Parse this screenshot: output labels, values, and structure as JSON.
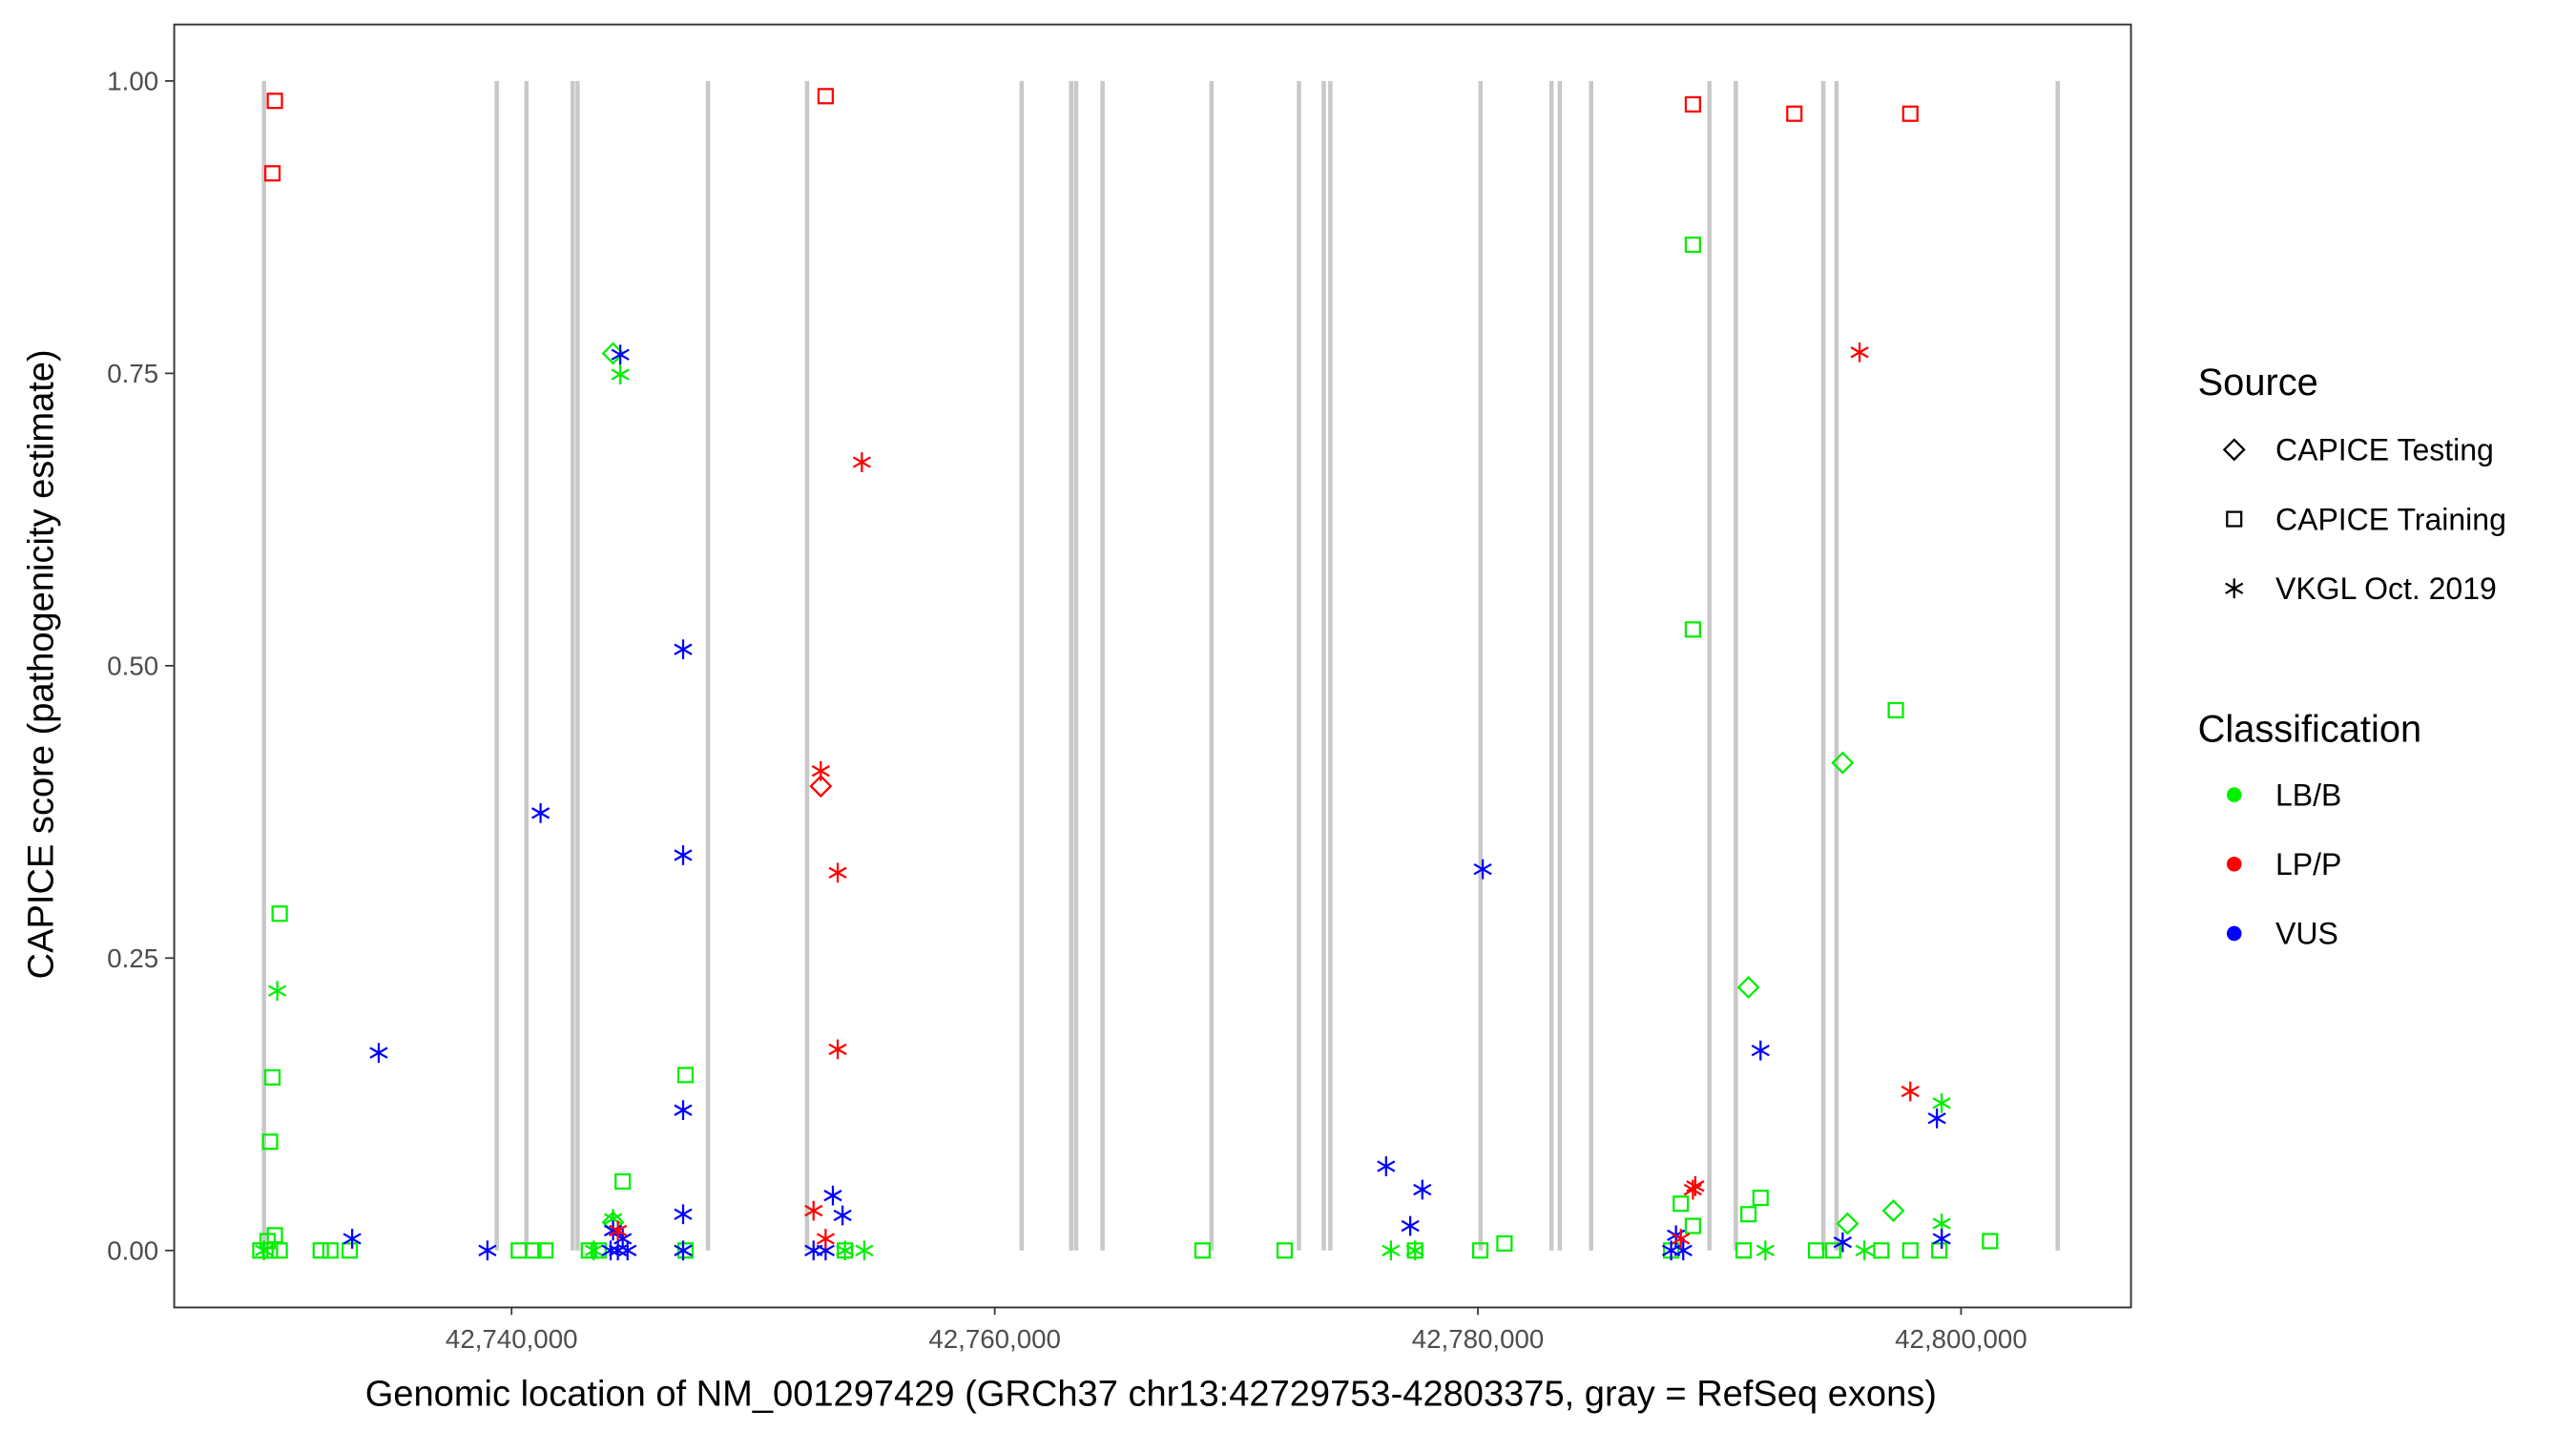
{
  "chart_data": {
    "type": "scatter",
    "xlabel": "Genomic location of NM_001297429 (GRCh37 chr13:42729753-42803375, gray = RefSeq exons)",
    "ylabel": "CAPICE score (pathogenicity estimate)",
    "xlim": [
      42726000,
      42807000
    ],
    "ylim": [
      -0.048,
      1.049
    ],
    "x_ticks": [
      42740000,
      42760000,
      42780000,
      42800000
    ],
    "x_tick_labels": [
      "42,740,000",
      "42,760,000",
      "42,780,000",
      "42,800,000"
    ],
    "y_ticks": [
      0,
      0.25,
      0.5,
      0.75,
      1
    ],
    "y_tick_labels": [
      "0.00",
      "0.25",
      "0.50",
      "0.75",
      "1.00"
    ],
    "grid": false,
    "exons_color": "#c8c8c8",
    "exons": [
      42729750,
      42739385,
      42740615,
      42742528,
      42742733,
      42748131,
      42752231,
      42761114,
      42763164,
      42763369,
      42764462,
      42768972,
      42772594,
      42773619,
      42773892,
      42780110,
      42783048,
      42783390,
      42784688,
      42789583,
      42790676,
      42794298,
      42794845,
      42804000
    ],
    "legend": {
      "placement": "right",
      "source": {
        "title": "Source",
        "entries": [
          {
            "key": "testing",
            "label": "CAPICE Testing",
            "shape": "diamond"
          },
          {
            "key": "training",
            "label": "CAPICE Training",
            "shape": "square"
          },
          {
            "key": "vkgl",
            "label": "VKGL Oct. 2019",
            "shape": "asterisk"
          }
        ]
      },
      "classification": {
        "title": "Classification",
        "entries": [
          {
            "key": "LB/B",
            "label": "LB/B",
            "color": "#00ee00"
          },
          {
            "key": "LP/P",
            "label": "LP/P",
            "color": "#ff0000"
          },
          {
            "key": "VUS",
            "label": "VUS",
            "color": "#0000ff"
          }
        ]
      }
    },
    "points": [
      [
        42730200,
        0.983,
        "training",
        "LP/P"
      ],
      [
        42730100,
        0.921,
        "training",
        "LP/P"
      ],
      [
        42753000,
        0.987,
        "training",
        "LP/P"
      ],
      [
        42788900,
        0.98,
        "training",
        "LP/P"
      ],
      [
        42793100,
        0.972,
        "training",
        "LP/P"
      ],
      [
        42797900,
        0.972,
        "training",
        "LP/P"
      ],
      [
        42788900,
        0.86,
        "training",
        "LB/B"
      ],
      [
        42788900,
        0.531,
        "training",
        "LB/B"
      ],
      [
        42797300,
        0.462,
        "training",
        "LB/B"
      ],
      [
        42730400,
        0.288,
        "training",
        "LB/B"
      ],
      [
        42730100,
        0.148,
        "training",
        "LB/B"
      ],
      [
        42730000,
        0.093,
        "training",
        "LB/B"
      ],
      [
        42747200,
        0.15,
        "training",
        "LB/B"
      ],
      [
        42744600,
        0.059,
        "training",
        "LB/B"
      ],
      [
        42791700,
        0.045,
        "training",
        "LB/B"
      ],
      [
        42788400,
        0.04,
        "training",
        "LB/B"
      ],
      [
        42791200,
        0.031,
        "training",
        "LB/B"
      ],
      [
        42788900,
        0.021,
        "training",
        "LB/B"
      ],
      [
        42801200,
        0.008,
        "training",
        "LB/B"
      ],
      [
        42781100,
        0.006,
        "training",
        "LB/B"
      ],
      [
        42730200,
        0.013,
        "training",
        "LB/B"
      ],
      [
        42729900,
        0.008,
        "training",
        "LB/B"
      ],
      [
        42729600,
        0,
        "training",
        "LB/B"
      ],
      [
        42730000,
        0,
        "training",
        "LB/B"
      ],
      [
        42730400,
        0,
        "training",
        "LB/B"
      ],
      [
        42732100,
        0,
        "training",
        "LB/B"
      ],
      [
        42732500,
        0,
        "training",
        "LB/B"
      ],
      [
        42733300,
        0,
        "training",
        "LB/B"
      ],
      [
        42740300,
        0,
        "training",
        "LB/B"
      ],
      [
        42740900,
        0,
        "training",
        "LB/B"
      ],
      [
        42741400,
        0,
        "training",
        "LB/B"
      ],
      [
        42743200,
        0,
        "training",
        "LB/B"
      ],
      [
        42743600,
        0,
        "training",
        "LB/B"
      ],
      [
        42747200,
        0,
        "training",
        "LB/B"
      ],
      [
        42753800,
        0,
        "training",
        "LB/B"
      ],
      [
        42768600,
        0,
        "training",
        "LB/B"
      ],
      [
        42772000,
        0,
        "training",
        "LB/B"
      ],
      [
        42777400,
        0,
        "training",
        "LB/B"
      ],
      [
        42780100,
        0,
        "training",
        "LB/B"
      ],
      [
        42788000,
        0,
        "training",
        "LB/B"
      ],
      [
        42791000,
        0,
        "training",
        "LB/B"
      ],
      [
        42794000,
        0,
        "training",
        "LB/B"
      ],
      [
        42794700,
        0,
        "training",
        "LB/B"
      ],
      [
        42796700,
        0,
        "training",
        "LB/B"
      ],
      [
        42797900,
        0,
        "training",
        "LB/B"
      ],
      [
        42799100,
        0,
        "training",
        "LB/B"
      ],
      [
        42744200,
        0.767,
        "testing",
        "LB/B"
      ],
      [
        42795100,
        0.417,
        "testing",
        "LB/B"
      ],
      [
        42791200,
        0.225,
        "testing",
        "LB/B"
      ],
      [
        42797200,
        0.034,
        "testing",
        "LB/B"
      ],
      [
        42795300,
        0.023,
        "testing",
        "LB/B"
      ],
      [
        42744200,
        0.024,
        "testing",
        "LB/B"
      ],
      [
        42752800,
        0.397,
        "testing",
        "LP/P"
      ],
      [
        42744500,
        0.749,
        "vkgl",
        "LB/B"
      ],
      [
        42730300,
        0.222,
        "vkgl",
        "LB/B"
      ],
      [
        42799200,
        0.126,
        "vkgl",
        "LB/B"
      ],
      [
        42799200,
        0.023,
        "vkgl",
        "LB/B"
      ],
      [
        42744200,
        0.027,
        "vkgl",
        "LB/B"
      ],
      [
        42776400,
        0,
        "vkgl",
        "LB/B"
      ],
      [
        42777400,
        0,
        "vkgl",
        "LB/B"
      ],
      [
        42791900,
        0,
        "vkgl",
        "LB/B"
      ],
      [
        42796000,
        0,
        "vkgl",
        "LB/B"
      ],
      [
        42754600,
        0,
        "vkgl",
        "LB/B"
      ],
      [
        42753800,
        0,
        "vkgl",
        "LB/B"
      ],
      [
        42743400,
        0,
        "vkgl",
        "LB/B"
      ],
      [
        42747100,
        0,
        "vkgl",
        "LB/B"
      ],
      [
        42729750,
        0,
        "vkgl",
        "LB/B"
      ],
      [
        42744500,
        0.766,
        "vkgl",
        "VUS"
      ],
      [
        42747100,
        0.514,
        "vkgl",
        "VUS"
      ],
      [
        42741200,
        0.374,
        "vkgl",
        "VUS"
      ],
      [
        42747100,
        0.338,
        "vkgl",
        "VUS"
      ],
      [
        42780200,
        0.326,
        "vkgl",
        "VUS"
      ],
      [
        42734500,
        0.169,
        "vkgl",
        "VUS"
      ],
      [
        42791700,
        0.171,
        "vkgl",
        "VUS"
      ],
      [
        42747100,
        0.12,
        "vkgl",
        "VUS"
      ],
      [
        42799000,
        0.113,
        "vkgl",
        "VUS"
      ],
      [
        42776200,
        0.072,
        "vkgl",
        "VUS"
      ],
      [
        42777700,
        0.052,
        "vkgl",
        "VUS"
      ],
      [
        42777200,
        0.021,
        "vkgl",
        "VUS"
      ],
      [
        42747100,
        0.031,
        "vkgl",
        "VUS"
      ],
      [
        42753300,
        0.047,
        "vkgl",
        "VUS"
      ],
      [
        42753700,
        0.03,
        "vkgl",
        "VUS"
      ],
      [
        42733400,
        0.01,
        "vkgl",
        "VUS"
      ],
      [
        42799200,
        0.01,
        "vkgl",
        "VUS"
      ],
      [
        42795100,
        0.007,
        "vkgl",
        "VUS"
      ],
      [
        42744200,
        0.017,
        "vkgl",
        "VUS"
      ],
      [
        42744600,
        0.01,
        "vkgl",
        "VUS"
      ],
      [
        42788200,
        0.013,
        "vkgl",
        "VUS"
      ],
      [
        42739000,
        0,
        "vkgl",
        "VUS"
      ],
      [
        42744100,
        0,
        "vkgl",
        "VUS"
      ],
      [
        42744400,
        0,
        "vkgl",
        "VUS"
      ],
      [
        42744800,
        0,
        "vkgl",
        "VUS"
      ],
      [
        42747100,
        0,
        "vkgl",
        "VUS"
      ],
      [
        42752500,
        0,
        "vkgl",
        "VUS"
      ],
      [
        42753000,
        0,
        "vkgl",
        "VUS"
      ],
      [
        42788000,
        0,
        "vkgl",
        "VUS"
      ],
      [
        42788500,
        0,
        "vkgl",
        "VUS"
      ],
      [
        42795800,
        0.768,
        "vkgl",
        "LP/P"
      ],
      [
        42754500,
        0.674,
        "vkgl",
        "LP/P"
      ],
      [
        42752800,
        0.41,
        "vkgl",
        "LP/P"
      ],
      [
        42753500,
        0.323,
        "vkgl",
        "LP/P"
      ],
      [
        42753500,
        0.172,
        "vkgl",
        "LP/P"
      ],
      [
        42797900,
        0.136,
        "vkgl",
        "LP/P"
      ],
      [
        42788900,
        0.052,
        "vkgl",
        "LP/P"
      ],
      [
        42789000,
        0.055,
        "vkgl",
        "LP/P"
      ],
      [
        42752500,
        0.034,
        "vkgl",
        "LP/P"
      ],
      [
        42744400,
        0.017,
        "vkgl",
        "LP/P"
      ],
      [
        42788400,
        0.01,
        "vkgl",
        "LP/P"
      ],
      [
        42753000,
        0.01,
        "vkgl",
        "LP/P"
      ]
    ]
  }
}
